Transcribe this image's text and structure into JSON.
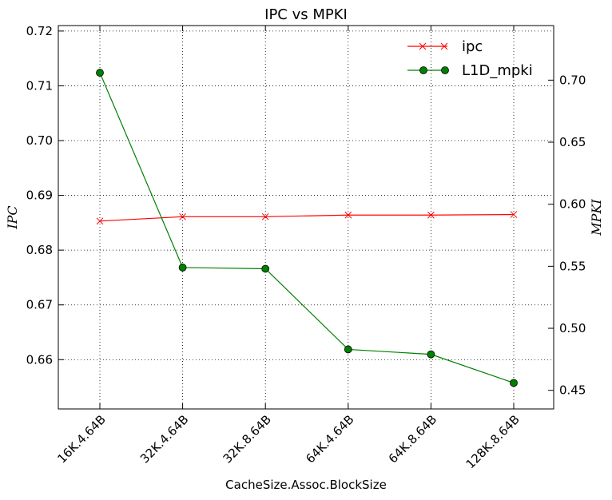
{
  "chart_data": {
    "type": "line",
    "title": "IPC vs MPKI",
    "xlabel": "CacheSize.Assoc.BlockSize",
    "ylabel_left": "IPC",
    "ylabel_right": "MPKI",
    "categories": [
      "16K.4.64B",
      "32K.4.64B",
      "32K.8.64B",
      "64K.4.64B",
      "64K.8.64B",
      "128K.8.64B"
    ],
    "y_left_lim": [
      0.651,
      0.721
    ],
    "y_left_ticks": [
      "0.66",
      "0.67",
      "0.68",
      "0.69",
      "0.70",
      "0.71",
      "0.72"
    ],
    "y_right_lim": [
      0.435,
      0.744
    ],
    "y_right_ticks": [
      "0.45",
      "0.50",
      "0.55",
      "0.60",
      "0.65",
      "0.70"
    ],
    "grid": true,
    "legend_position": "top-right",
    "series": [
      {
        "name": "ipc",
        "axis": "left",
        "color": "#ff0000",
        "marker": "x",
        "values": [
          0.6853,
          0.6861,
          0.6861,
          0.6864,
          0.6864,
          0.6865
        ]
      },
      {
        "name": "L1D_mpki",
        "axis": "right",
        "color": "#008000",
        "marker": "o",
        "values": [
          0.706,
          0.549,
          0.548,
          0.483,
          0.479,
          0.456
        ]
      }
    ]
  }
}
